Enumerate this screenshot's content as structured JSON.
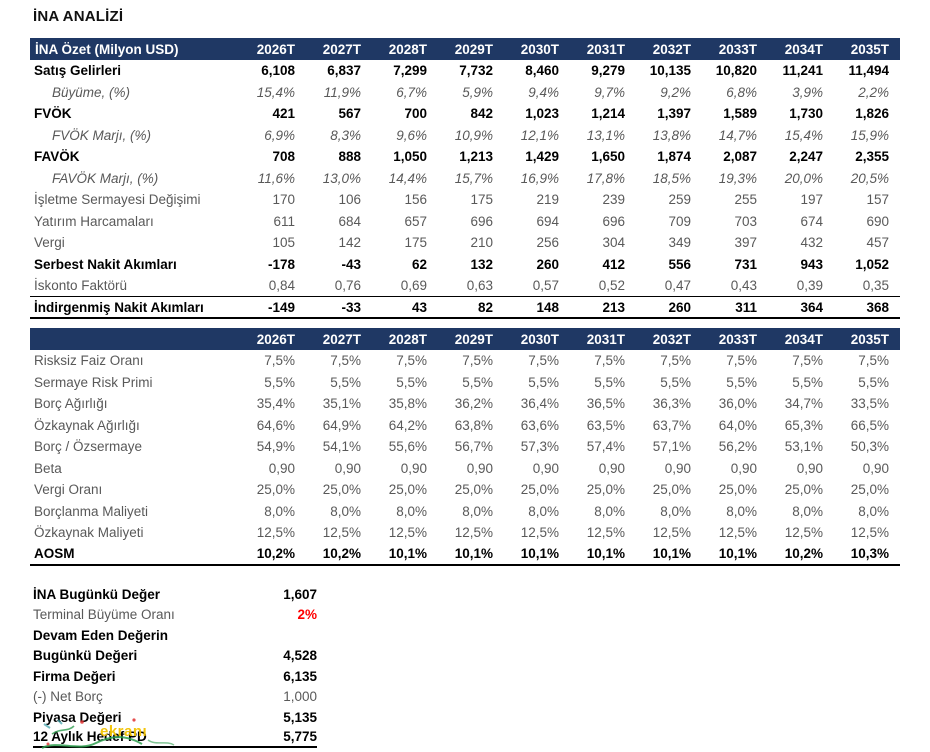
{
  "page_title": "İNA ANALİZİ",
  "colors": {
    "header_bg": "#1F3864",
    "header_text": "#FFFFFF",
    "body_text": "#595959",
    "bold_text": "#000000",
    "accent_red": "#FF0000"
  },
  "years": [
    "2026T",
    "2027T",
    "2028T",
    "2029T",
    "2030T",
    "2031T",
    "2032T",
    "2033T",
    "2034T",
    "2035T"
  ],
  "table1": {
    "header_label": "İNA Özet (Milyon USD)",
    "rows": [
      {
        "label": "Satış Gelirleri",
        "style": "bold",
        "values": [
          "6,108",
          "6,837",
          "7,299",
          "7,732",
          "8,460",
          "9,279",
          "10,135",
          "10,820",
          "11,241",
          "11,494"
        ]
      },
      {
        "label": "Büyüme, (%)",
        "style": "italic",
        "values": [
          "15,4%",
          "11,9%",
          "6,7%",
          "5,9%",
          "9,4%",
          "9,7%",
          "9,2%",
          "6,8%",
          "3,9%",
          "2,2%"
        ]
      },
      {
        "label": "FVÖK",
        "style": "bold",
        "values": [
          "421",
          "567",
          "700",
          "842",
          "1,023",
          "1,214",
          "1,397",
          "1,589",
          "1,730",
          "1,826"
        ]
      },
      {
        "label": "FVÖK Marjı, (%)",
        "style": "italic",
        "values": [
          "6,9%",
          "8,3%",
          "9,6%",
          "10,9%",
          "12,1%",
          "13,1%",
          "13,8%",
          "14,7%",
          "15,4%",
          "15,9%"
        ]
      },
      {
        "label": "FAVÖK",
        "style": "bold",
        "values": [
          "708",
          "888",
          "1,050",
          "1,213",
          "1,429",
          "1,650",
          "1,874",
          "2,087",
          "2,247",
          "2,355"
        ]
      },
      {
        "label": "FAVÖK Marjı, (%)",
        "style": "italic",
        "values": [
          "11,6%",
          "13,0%",
          "14,4%",
          "15,7%",
          "16,9%",
          "17,8%",
          "18,5%",
          "19,3%",
          "20,0%",
          "20,5%"
        ]
      },
      {
        "label": "İşletme Sermayesi Değişimi",
        "style": "regular",
        "values": [
          "170",
          "106",
          "156",
          "175",
          "219",
          "239",
          "259",
          "255",
          "197",
          "157"
        ]
      },
      {
        "label": "Yatırım Harcamaları",
        "style": "regular",
        "values": [
          "611",
          "684",
          "657",
          "696",
          "694",
          "696",
          "709",
          "703",
          "674",
          "690"
        ]
      },
      {
        "label": "Vergi",
        "style": "regular",
        "values": [
          "105",
          "142",
          "175",
          "210",
          "256",
          "304",
          "349",
          "397",
          "432",
          "457"
        ]
      },
      {
        "label": "Serbest Nakit Akımları",
        "style": "bold",
        "values": [
          "-178",
          "-43",
          "62",
          "132",
          "260",
          "412",
          "556",
          "731",
          "943",
          "1,052"
        ]
      },
      {
        "label": "İskonto Faktörü",
        "style": "regular",
        "values": [
          "0,84",
          "0,76",
          "0,69",
          "0,63",
          "0,57",
          "0,52",
          "0,47",
          "0,43",
          "0,39",
          "0,35"
        ]
      },
      {
        "label": "İndirgenmiş Nakit Akımları",
        "style": "bold topline",
        "values": [
          "-149",
          "-33",
          "43",
          "82",
          "148",
          "213",
          "260",
          "311",
          "364",
          "368"
        ]
      }
    ]
  },
  "table2": {
    "header_label": "",
    "rows": [
      {
        "label": "Risksiz Faiz Oranı",
        "style": "regular",
        "values": [
          "7,5%",
          "7,5%",
          "7,5%",
          "7,5%",
          "7,5%",
          "7,5%",
          "7,5%",
          "7,5%",
          "7,5%",
          "7,5%"
        ]
      },
      {
        "label": "Sermaye Risk Primi",
        "style": "regular",
        "values": [
          "5,5%",
          "5,5%",
          "5,5%",
          "5,5%",
          "5,5%",
          "5,5%",
          "5,5%",
          "5,5%",
          "5,5%",
          "5,5%"
        ]
      },
      {
        "label": "Borç Ağırlığı",
        "style": "regular",
        "values": [
          "35,4%",
          "35,1%",
          "35,8%",
          "36,2%",
          "36,4%",
          "36,5%",
          "36,3%",
          "36,0%",
          "34,7%",
          "33,5%"
        ]
      },
      {
        "label": "Özkaynak Ağırlığı",
        "style": "regular",
        "values": [
          "64,6%",
          "64,9%",
          "64,2%",
          "63,8%",
          "63,6%",
          "63,5%",
          "63,7%",
          "64,0%",
          "65,3%",
          "66,5%"
        ]
      },
      {
        "label": "Borç / Özsermaye",
        "style": "regular",
        "values": [
          "54,9%",
          "54,1%",
          "55,6%",
          "56,7%",
          "57,3%",
          "57,4%",
          "57,1%",
          "56,2%",
          "53,1%",
          "50,3%"
        ]
      },
      {
        "label": "Beta",
        "style": "regular",
        "values": [
          "0,90",
          "0,90",
          "0,90",
          "0,90",
          "0,90",
          "0,90",
          "0,90",
          "0,90",
          "0,90",
          "0,90"
        ]
      },
      {
        "label": "Vergi Oranı",
        "style": "regular",
        "values": [
          "25,0%",
          "25,0%",
          "25,0%",
          "25,0%",
          "25,0%",
          "25,0%",
          "25,0%",
          "25,0%",
          "25,0%",
          "25,0%"
        ]
      },
      {
        "label": "Borçlanma Maliyeti",
        "style": "regular",
        "values": [
          "8,0%",
          "8,0%",
          "8,0%",
          "8,0%",
          "8,0%",
          "8,0%",
          "8,0%",
          "8,0%",
          "8,0%",
          "8,0%"
        ]
      },
      {
        "label": "Özkaynak Maliyeti",
        "style": "regular",
        "values": [
          "12,5%",
          "12,5%",
          "12,5%",
          "12,5%",
          "12,5%",
          "12,5%",
          "12,5%",
          "12,5%",
          "12,5%",
          "12,5%"
        ]
      },
      {
        "label": "AOSM",
        "style": "bold",
        "values": [
          "10,2%",
          "10,2%",
          "10,1%",
          "10,1%",
          "10,1%",
          "10,1%",
          "10,1%",
          "10,1%",
          "10,2%",
          "10,3%"
        ]
      }
    ]
  },
  "summary": {
    "rows": [
      {
        "label": "İNA Bugünkü Değer",
        "value": "1,607",
        "style": "bold",
        "value_class": ""
      },
      {
        "label": "Terminal Büyüme Oranı",
        "value": "2%",
        "style": "regular",
        "value_class": "red"
      },
      {
        "label": "Devam Eden Değerin",
        "value": "",
        "style": "bold",
        "value_class": ""
      },
      {
        "label": "Bugünkü Değeri",
        "value": "4,528",
        "style": "bold",
        "value_class": ""
      },
      {
        "label": "Firma Değeri",
        "value": "6,135",
        "style": "bold",
        "value_class": ""
      },
      {
        "label": "(-) Net Borç",
        "value": "1,000",
        "style": "regular",
        "value_class": ""
      },
      {
        "label": "Piyasa Değeri",
        "value": "5,135",
        "style": "bold",
        "value_class": ""
      },
      {
        "label": "12 Aylık Hedef PD",
        "value": "5,775",
        "style": "bold underline",
        "value_class": ""
      }
    ]
  },
  "watermark": {
    "text": "ekranı"
  }
}
